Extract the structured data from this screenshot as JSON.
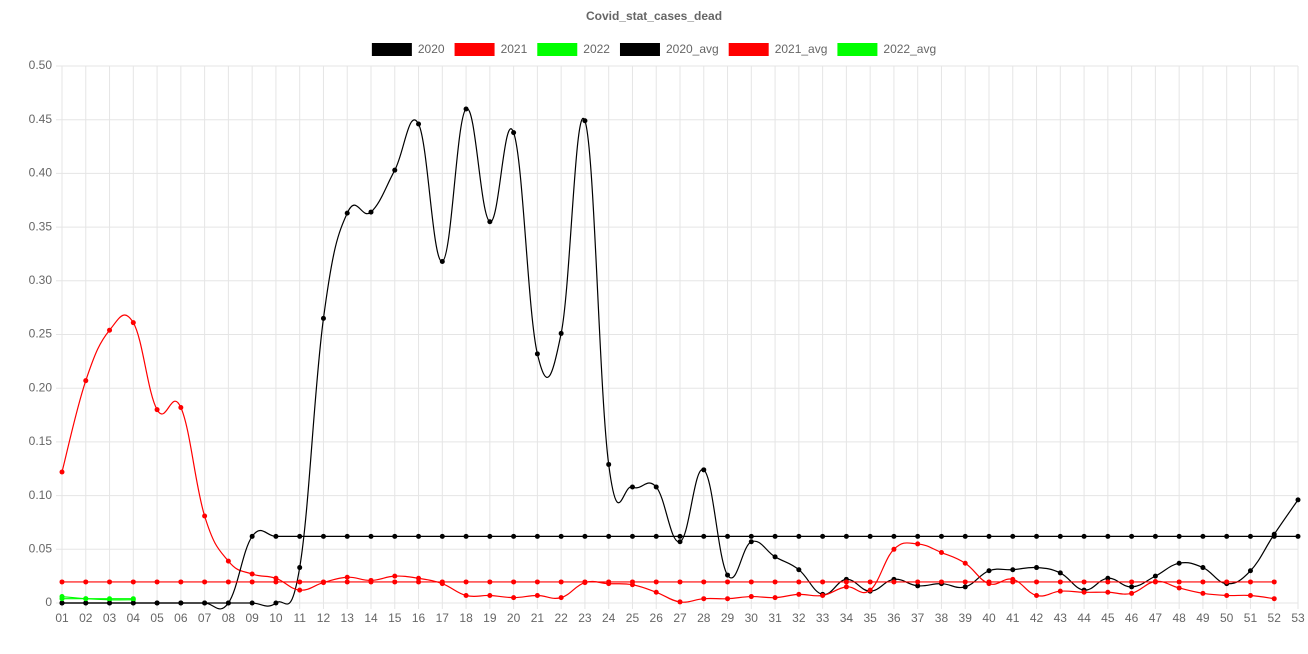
{
  "chart_data": {
    "type": "line",
    "title": "Covid_stat_cases_dead",
    "categories": [
      "01",
      "02",
      "03",
      "04",
      "05",
      "06",
      "07",
      "08",
      "09",
      "10",
      "11",
      "12",
      "13",
      "14",
      "15",
      "16",
      "17",
      "18",
      "19",
      "20",
      "21",
      "22",
      "23",
      "24",
      "25",
      "26",
      "27",
      "28",
      "29",
      "30",
      "31",
      "32",
      "33",
      "34",
      "35",
      "36",
      "37",
      "38",
      "39",
      "40",
      "41",
      "42",
      "43",
      "44",
      "45",
      "46",
      "47",
      "48",
      "49",
      "50",
      "51",
      "52",
      "53"
    ],
    "series": [
      {
        "name": "2020",
        "color": "#000000",
        "values": [
          0,
          0,
          0,
          0,
          0,
          0,
          0,
          0,
          0,
          0,
          0.033,
          0.265,
          0.363,
          0.364,
          0.403,
          0.446,
          0.318,
          0.46,
          0.355,
          0.438,
          0.232,
          0.251,
          0.449,
          0.129,
          0.108,
          0.108,
          0.057,
          0.124,
          0.026,
          0.057,
          0.043,
          0.031,
          0.008,
          0.022,
          0.011,
          0.022,
          0.016,
          0.018,
          0.015,
          0.03,
          0.031,
          0.033,
          0.028,
          0.012,
          0.023,
          0.015,
          0.025,
          0.037,
          0.033,
          0.018,
          0.03,
          0.064,
          0.096
        ]
      },
      {
        "name": "2021",
        "color": "#ff0000",
        "values": [
          0.122,
          0.207,
          0.254,
          0.261,
          0.18,
          0.182,
          0.081,
          0.039,
          0.027,
          0.023,
          0.012,
          0.019,
          0.024,
          0.021,
          0.025,
          0.023,
          0.018,
          0.007,
          0.007,
          0.005,
          0.007,
          0.005,
          0.019,
          0.018,
          0.017,
          0.01,
          0.001,
          0.004,
          0.004,
          0.006,
          0.005,
          0.008,
          0.007,
          0.015,
          0.012,
          0.05,
          0.055,
          0.047,
          0.037,
          0.018,
          0.022,
          0.007,
          0.011,
          0.01,
          0.01,
          0.009,
          0.02,
          0.014,
          0.009,
          0.007,
          0.007,
          0.004,
          null
        ]
      },
      {
        "name": "2022",
        "color": "#00ff00",
        "values": [
          0.006,
          0.004,
          0.003,
          0.003,
          null,
          null,
          null,
          null,
          null,
          null,
          null,
          null,
          null,
          null,
          null,
          null,
          null,
          null,
          null,
          null,
          null,
          null,
          null,
          null,
          null,
          null,
          null,
          null,
          null,
          null,
          null,
          null,
          null,
          null,
          null,
          null,
          null,
          null,
          null,
          null,
          null,
          null,
          null,
          null,
          null,
          null,
          null,
          null,
          null,
          null,
          null,
          null,
          null
        ]
      },
      {
        "name": "2020_avg",
        "color": "#000000",
        "values": [
          0,
          0,
          0,
          0,
          0,
          0,
          0,
          0,
          0.062,
          0.062,
          0.062,
          0.062,
          0.062,
          0.062,
          0.062,
          0.062,
          0.062,
          0.062,
          0.062,
          0.062,
          0.062,
          0.062,
          0.062,
          0.062,
          0.062,
          0.062,
          0.062,
          0.062,
          0.062,
          0.062,
          0.062,
          0.062,
          0.062,
          0.062,
          0.062,
          0.062,
          0.062,
          0.062,
          0.062,
          0.062,
          0.062,
          0.062,
          0.062,
          0.062,
          0.062,
          0.062,
          0.062,
          0.062,
          0.062,
          0.062,
          0.062,
          0.062,
          0.062
        ]
      },
      {
        "name": "2021_avg",
        "color": "#ff0000",
        "values": [
          0.0196,
          0.0196,
          0.0196,
          0.0196,
          0.0196,
          0.0196,
          0.0196,
          0.0196,
          0.0196,
          0.0196,
          0.0196,
          0.0196,
          0.0196,
          0.0196,
          0.0196,
          0.0196,
          0.0196,
          0.0196,
          0.0196,
          0.0196,
          0.0196,
          0.0196,
          0.0196,
          0.0196,
          0.0196,
          0.0196,
          0.0196,
          0.0196,
          0.0196,
          0.0196,
          0.0196,
          0.0196,
          0.0196,
          0.0196,
          0.0196,
          0.0196,
          0.0196,
          0.0196,
          0.0196,
          0.0196,
          0.0196,
          0.0196,
          0.0196,
          0.0196,
          0.0196,
          0.0196,
          0.0196,
          0.0196,
          0.0196,
          0.0196,
          0.0196,
          0.0196,
          null
        ]
      },
      {
        "name": "2022_avg",
        "color": "#00ff00",
        "values": [
          0.004,
          0.004,
          0.004,
          0.004,
          null,
          null,
          null,
          null,
          null,
          null,
          null,
          null,
          null,
          null,
          null,
          null,
          null,
          null,
          null,
          null,
          null,
          null,
          null,
          null,
          null,
          null,
          null,
          null,
          null,
          null,
          null,
          null,
          null,
          null,
          null,
          null,
          null,
          null,
          null,
          null,
          null,
          null,
          null,
          null,
          null,
          null,
          null,
          null,
          null,
          null,
          null,
          null,
          null
        ]
      }
    ],
    "ylim": [
      0,
      0.5
    ],
    "yticks": [
      0,
      0.05,
      {
        "value": 0.1,
        "label": "0.10"
      },
      0.15,
      {
        "value": 0.2,
        "label": "0.20"
      },
      0.25,
      {
        "value": 0.3,
        "label": "0.30"
      },
      0.35,
      {
        "value": 0.4,
        "label": "0.40"
      },
      0.45,
      {
        "value": 0.5,
        "label": "0.50"
      }
    ],
    "grid": true,
    "legend": "top"
  }
}
